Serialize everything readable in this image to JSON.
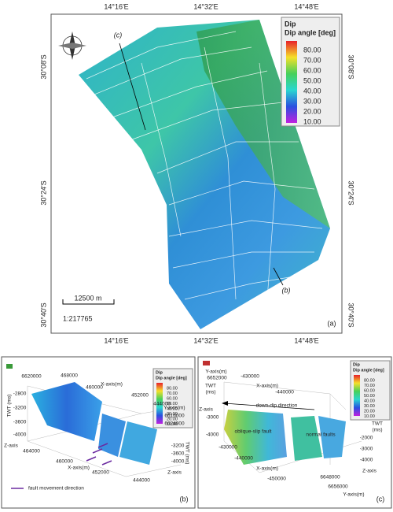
{
  "panel_a": {
    "top_axis": [
      "14°16'E",
      "14°32'E",
      "14°48'E"
    ],
    "bottom_axis": [
      "14°16'E",
      "14°32'E",
      "14°48'E"
    ],
    "left_axis": [
      "30°08'S",
      "30°24'S",
      "30°40'S"
    ],
    "right_axis": [
      "30°08'S",
      "30°24'S",
      "30°40'S"
    ],
    "legend": {
      "title": "Dip",
      "subtitle": "Dip angle [deg]",
      "ticks": [
        "80.00",
        "70.00",
        "60.00",
        "50.00",
        "40.00",
        "30.00",
        "20.00",
        "10.00"
      ]
    },
    "scale_bar": "12500 m",
    "scale": "1:217765",
    "annotations": [
      "(c)",
      "(b)"
    ],
    "label": "(a)"
  },
  "panel_b": {
    "legend": {
      "title": "Dip",
      "subtitle": "Dip angle [deg]",
      "ticks": [
        "80.00",
        "70.00",
        "60.00",
        "50.00",
        "40.00",
        "30.00",
        "20.00",
        "10.00"
      ]
    },
    "labels": [
      "TWT (ms)",
      "-2800",
      "-3200",
      "-3600",
      "-4000",
      "Z-axis",
      "6620000",
      "468000",
      "460000",
      "X-axis(m)",
      "452000",
      "444000",
      "Y-axis(m)",
      "6616000",
      "6624000",
      "TWT (ms)",
      "-3200",
      "-3600",
      "-4000",
      "Z-axis",
      "464000",
      "460000",
      "X-axis(m)",
      "452000",
      "444000"
    ],
    "key": "fault movement direction",
    "label": "(b)"
  },
  "panel_c": {
    "legend": {
      "title": "Dip",
      "subtitle": "Dip angle [deg]",
      "ticks": [
        "80.00",
        "70.00",
        "60.00",
        "50.00",
        "40.00",
        "30.00",
        "20.00",
        "10.00"
      ]
    },
    "labels": [
      "TWT",
      "(ms)",
      "Y-axis(m)",
      "6652000",
      "-430000",
      "X-axis(m)",
      "-440000",
      "Z-axis",
      "-3000",
      "-4000",
      "TWT",
      "(ms)",
      "-2000",
      "-3000",
      "-4000",
      "Z-axis",
      "-430000",
      "-440000",
      "X-axis(m)",
      "-450000",
      "6648000",
      "6656000",
      "Y-axis(m)"
    ],
    "annotations": [
      "down-dip direction",
      "oblique-slip fault",
      "normal faults"
    ],
    "label": "(c)"
  }
}
